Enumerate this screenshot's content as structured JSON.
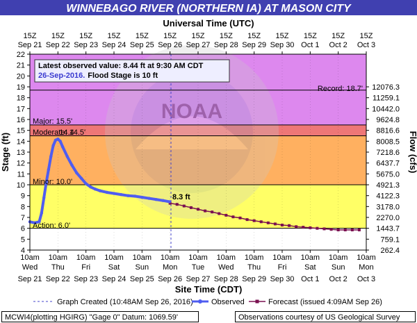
{
  "header": {
    "title": "WINNEBAGO RIVER (NORTHERN IA) AT MASON CITY",
    "top_axis_title": "Universal Time (UTC)",
    "bottom_axis_title": "Site Time (CDT)",
    "left_axis_title": "Stage (ft)",
    "right_axis_title": "Flow (cfs)"
  },
  "info_box": {
    "line1": "Latest observed value: 8.44 ft at 9:30 AM CDT",
    "line2_date": "26-Sep-2016.",
    "line2_text": "Flood Stage is 10 ft"
  },
  "thresholds": {
    "record_label": "Record: 18.7'",
    "major_label": "Major: 15.5'",
    "moderate_label": "Moderate: 14.5'",
    "minor_label": "Minor: 10.0'",
    "action_label": "Action: 6.0'"
  },
  "annotations": {
    "peak_label": "14.4",
    "latest_label": "8.3 ft",
    "watermark": "NOAA"
  },
  "legend": {
    "graph_created": "Graph Created (10:48AM Sep 26, 2016)",
    "observed": "Observed",
    "forecast": "Forecast (issued 4:09AM Sep 26)"
  },
  "footer": {
    "left": "MCWI4(plotting HGIRG) \"Gage 0\" Datum: 1069.59'",
    "right": "Observations courtesy of US Geological Survey"
  },
  "colors": {
    "title_bg": "#4040b0",
    "record_zone": "#dd88ee",
    "major_zone": "#ee7777",
    "moderate_zone": "#ffb060",
    "minor_zone": "#ffff66",
    "action_zone": "#ffffff",
    "observed": "#4f5df0",
    "forecast": "#7a1050",
    "graph_created_line": "#4444cc"
  },
  "chart_data": {
    "type": "line",
    "ylim_stage": [
      4,
      22
    ],
    "y_ticks_stage": [
      4,
      5,
      6,
      7,
      8,
      9,
      10,
      11,
      12,
      13,
      14,
      15,
      16,
      17,
      18,
      19,
      20,
      21,
      22
    ],
    "y_ticks_flow": [
      {
        "stage": 4,
        "label": "262.4"
      },
      {
        "stage": 5,
        "label": "759.1"
      },
      {
        "stage": 6,
        "label": "1443.7"
      },
      {
        "stage": 7,
        "label": "2270.0"
      },
      {
        "stage": 8,
        "label": "3178.0"
      },
      {
        "stage": 9,
        "label": "4122.3"
      },
      {
        "stage": 10,
        "label": "4921.3"
      },
      {
        "stage": 11,
        "label": "5675.0"
      },
      {
        "stage": 12,
        "label": "6437.7"
      },
      {
        "stage": 13,
        "label": "7218.6"
      },
      {
        "stage": 14,
        "label": "8008.5"
      },
      {
        "stage": 15,
        "label": "8816.6"
      },
      {
        "stage": 16,
        "label": "9624.8"
      },
      {
        "stage": 17,
        "label": "10442.0"
      },
      {
        "stage": 18,
        "label": "11259.1"
      },
      {
        "stage": 19,
        "label": "12076.3"
      }
    ],
    "x_unit": "hours since 10am CDT Sep 21",
    "xlim": [
      0,
      288
    ],
    "bottom_ticks": [
      {
        "x": 0,
        "time": "10am",
        "day": "Wed",
        "date": "Sep 21"
      },
      {
        "x": 24,
        "time": "10am",
        "day": "Thu",
        "date": "Sep 22"
      },
      {
        "x": 48,
        "time": "10am",
        "day": "Fri",
        "date": "Sep 23"
      },
      {
        "x": 72,
        "time": "10am",
        "day": "Sat",
        "date": "Sep 24"
      },
      {
        "x": 96,
        "time": "10am",
        "day": "Sun",
        "date": "Sep 25"
      },
      {
        "x": 120,
        "time": "10am",
        "day": "Mon",
        "date": "Sep 26"
      },
      {
        "x": 144,
        "time": "10am",
        "day": "Tue",
        "date": "Sep 27"
      },
      {
        "x": 168,
        "time": "10am",
        "day": "Wed",
        "date": "Sep 28"
      },
      {
        "x": 192,
        "time": "10am",
        "day": "Thu",
        "date": "Sep 29"
      },
      {
        "x": 216,
        "time": "10am",
        "day": "Fri",
        "date": "Sep 30"
      },
      {
        "x": 240,
        "time": "10am",
        "day": "Sat",
        "date": "Oct 1"
      },
      {
        "x": 264,
        "time": "10am",
        "day": "Sun",
        "date": "Oct 2"
      },
      {
        "x": 288,
        "time": "10am",
        "day": "Mon",
        "date": "Oct 3"
      }
    ],
    "top_ticks": [
      {
        "x": 0,
        "time": "15Z",
        "date": "Sep 21"
      },
      {
        "x": 24,
        "time": "15Z",
        "date": "Sep 22"
      },
      {
        "x": 48,
        "time": "15Z",
        "date": "Sep 23"
      },
      {
        "x": 72,
        "time": "15Z",
        "date": "Sep 24"
      },
      {
        "x": 96,
        "time": "15Z",
        "date": "Sep 25"
      },
      {
        "x": 120,
        "time": "15Z",
        "date": "Sep 26"
      },
      {
        "x": 144,
        "time": "15Z",
        "date": "Sep 27"
      },
      {
        "x": 168,
        "time": "15Z",
        "date": "Sep 28"
      },
      {
        "x": 192,
        "time": "15Z",
        "date": "Sep 29"
      },
      {
        "x": 216,
        "time": "15Z",
        "date": "Sep 30"
      },
      {
        "x": 240,
        "time": "15Z",
        "date": "Oct 1"
      },
      {
        "x": 264,
        "time": "15Z",
        "date": "Oct 2"
      },
      {
        "x": 288,
        "time": "15Z",
        "date": "Oct 3"
      }
    ],
    "graph_created_x": 120.8,
    "zones": [
      {
        "from": 18.7,
        "to": 22,
        "color_key": "record_zone"
      },
      {
        "from": 15.5,
        "to": 18.7,
        "color_key": "record_zone"
      },
      {
        "from": 14.5,
        "to": 15.5,
        "color_key": "major_zone"
      },
      {
        "from": 10,
        "to": 14.5,
        "color_key": "moderate_zone"
      },
      {
        "from": 6,
        "to": 10,
        "color_key": "minor_zone"
      },
      {
        "from": 4,
        "to": 6,
        "color_key": "action_zone"
      }
    ],
    "threshold_lines": [
      18.7,
      15.5,
      14.5,
      10,
      6
    ],
    "series": [
      {
        "name": "Observed",
        "points": [
          [
            0,
            6.6
          ],
          [
            4,
            6.5
          ],
          [
            8,
            6.6
          ],
          [
            10,
            7.4
          ],
          [
            12,
            8.8
          ],
          [
            14,
            10.2
          ],
          [
            16,
            11.4
          ],
          [
            18,
            12.6
          ],
          [
            20,
            13.6
          ],
          [
            22,
            14.1
          ],
          [
            24,
            14.2
          ],
          [
            26,
            14.0
          ],
          [
            28,
            13.5
          ],
          [
            32,
            12.6
          ],
          [
            36,
            11.8
          ],
          [
            40,
            11.1
          ],
          [
            44,
            10.6
          ],
          [
            48,
            10.1
          ],
          [
            52,
            9.8
          ],
          [
            56,
            9.6
          ],
          [
            60,
            9.45
          ],
          [
            66,
            9.3
          ],
          [
            72,
            9.2
          ],
          [
            78,
            9.1
          ],
          [
            84,
            9.0
          ],
          [
            90,
            8.95
          ],
          [
            96,
            8.85
          ],
          [
            102,
            8.75
          ],
          [
            108,
            8.65
          ],
          [
            114,
            8.55
          ],
          [
            119.5,
            8.44
          ]
        ]
      },
      {
        "name": "Forecast",
        "points": [
          [
            120,
            8.3
          ],
          [
            126,
            8.2
          ],
          [
            132,
            8.05
          ],
          [
            138,
            7.9
          ],
          [
            144,
            7.75
          ],
          [
            150,
            7.6
          ],
          [
            156,
            7.5
          ],
          [
            162,
            7.35
          ],
          [
            168,
            7.2
          ],
          [
            174,
            7.05
          ],
          [
            180,
            6.95
          ],
          [
            186,
            6.8
          ],
          [
            192,
            6.7
          ],
          [
            198,
            6.6
          ],
          [
            204,
            6.5
          ],
          [
            210,
            6.4
          ],
          [
            216,
            6.3
          ],
          [
            222,
            6.25
          ],
          [
            228,
            6.15
          ],
          [
            234,
            6.1
          ],
          [
            240,
            6.05
          ],
          [
            246,
            6.0
          ],
          [
            252,
            5.95
          ],
          [
            258,
            5.9
          ],
          [
            264,
            5.85
          ],
          [
            270,
            5.85
          ],
          [
            276,
            5.85
          ],
          [
            282,
            5.85
          ]
        ]
      }
    ]
  }
}
